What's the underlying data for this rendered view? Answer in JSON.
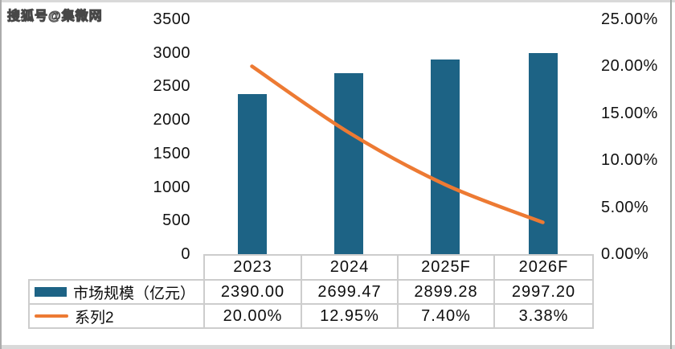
{
  "watermark": {
    "text": "搜狐号@集微网"
  },
  "chart_data": {
    "type": "bar",
    "combo": "bar+line",
    "title": "",
    "categories": [
      "2023",
      "2024",
      "2025F",
      "2026F"
    ],
    "series": [
      {
        "name": "市场规模（亿元）",
        "chart_type": "bar",
        "axis": "left",
        "color": "#1d6385",
        "values": [
          2390.0,
          2699.47,
          2899.28,
          2997.2
        ],
        "value_labels": [
          "2390.00",
          "2699.47",
          "2899.28",
          "2997.20"
        ]
      },
      {
        "name": "系列2",
        "chart_type": "line",
        "axis": "right",
        "color": "#ed7a33",
        "values": [
          20.0,
          12.95,
          7.4,
          3.38
        ],
        "value_labels": [
          "20.00%",
          "12.95%",
          "7.40%",
          "3.38%"
        ]
      }
    ],
    "left_axis": {
      "min": 0,
      "max": 3500,
      "step": 500,
      "ticks": [
        "3500",
        "3000",
        "2500",
        "2000",
        "1500",
        "1000",
        "500",
        "0"
      ]
    },
    "right_axis": {
      "min": 0,
      "max": 25,
      "step": 5,
      "ticks": [
        "25.00%",
        "20.00%",
        "15.00%",
        "10.00%",
        "5.00%",
        "0.00%"
      ]
    },
    "grid": false,
    "legend_position": "bottom-table"
  }
}
